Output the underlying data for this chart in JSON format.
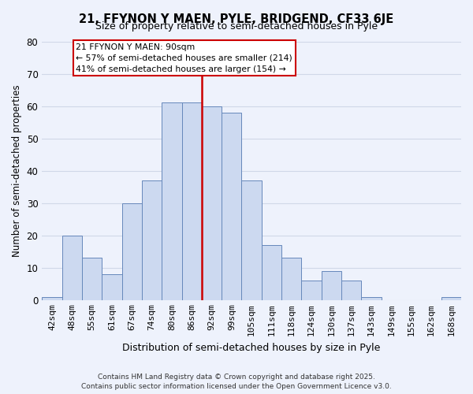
{
  "title": "21, FFYNON Y MAEN, PYLE, BRIDGEND, CF33 6JE",
  "subtitle": "Size of property relative to semi-detached houses in Pyle",
  "xlabel": "Distribution of semi-detached houses by size in Pyle",
  "ylabel": "Number of semi-detached properties",
  "bin_labels": [
    "42sqm",
    "48sqm",
    "55sqm",
    "61sqm",
    "67sqm",
    "74sqm",
    "80sqm",
    "86sqm",
    "92sqm",
    "99sqm",
    "105sqm",
    "111sqm",
    "118sqm",
    "124sqm",
    "130sqm",
    "137sqm",
    "143sqm",
    "149sqm",
    "155sqm",
    "162sqm",
    "168sqm"
  ],
  "bar_heights": [
    1,
    20,
    13,
    8,
    30,
    37,
    61,
    61,
    60,
    58,
    37,
    17,
    13,
    6,
    9,
    6,
    1,
    0,
    0,
    0,
    1
  ],
  "bar_color": "#ccd9f0",
  "bar_edge_color": "#6688bb",
  "vline_color": "#cc0000",
  "annotation_title": "21 FFYNON Y MAEN: 90sqm",
  "annotation_line1": "← 57% of semi-detached houses are smaller (214)",
  "annotation_line2": "41% of semi-detached houses are larger (154) →",
  "annotation_box_color": "white",
  "annotation_box_edge": "#cc0000",
  "ylim": [
    0,
    80
  ],
  "yticks": [
    0,
    10,
    20,
    30,
    40,
    50,
    60,
    70,
    80
  ],
  "footer1": "Contains HM Land Registry data © Crown copyright and database right 2025.",
  "footer2": "Contains public sector information licensed under the Open Government Licence v3.0.",
  "bg_color": "#eef2fc",
  "grid_color": "#d0d8e8",
  "title_fontsize": 10.5,
  "subtitle_fontsize": 9
}
